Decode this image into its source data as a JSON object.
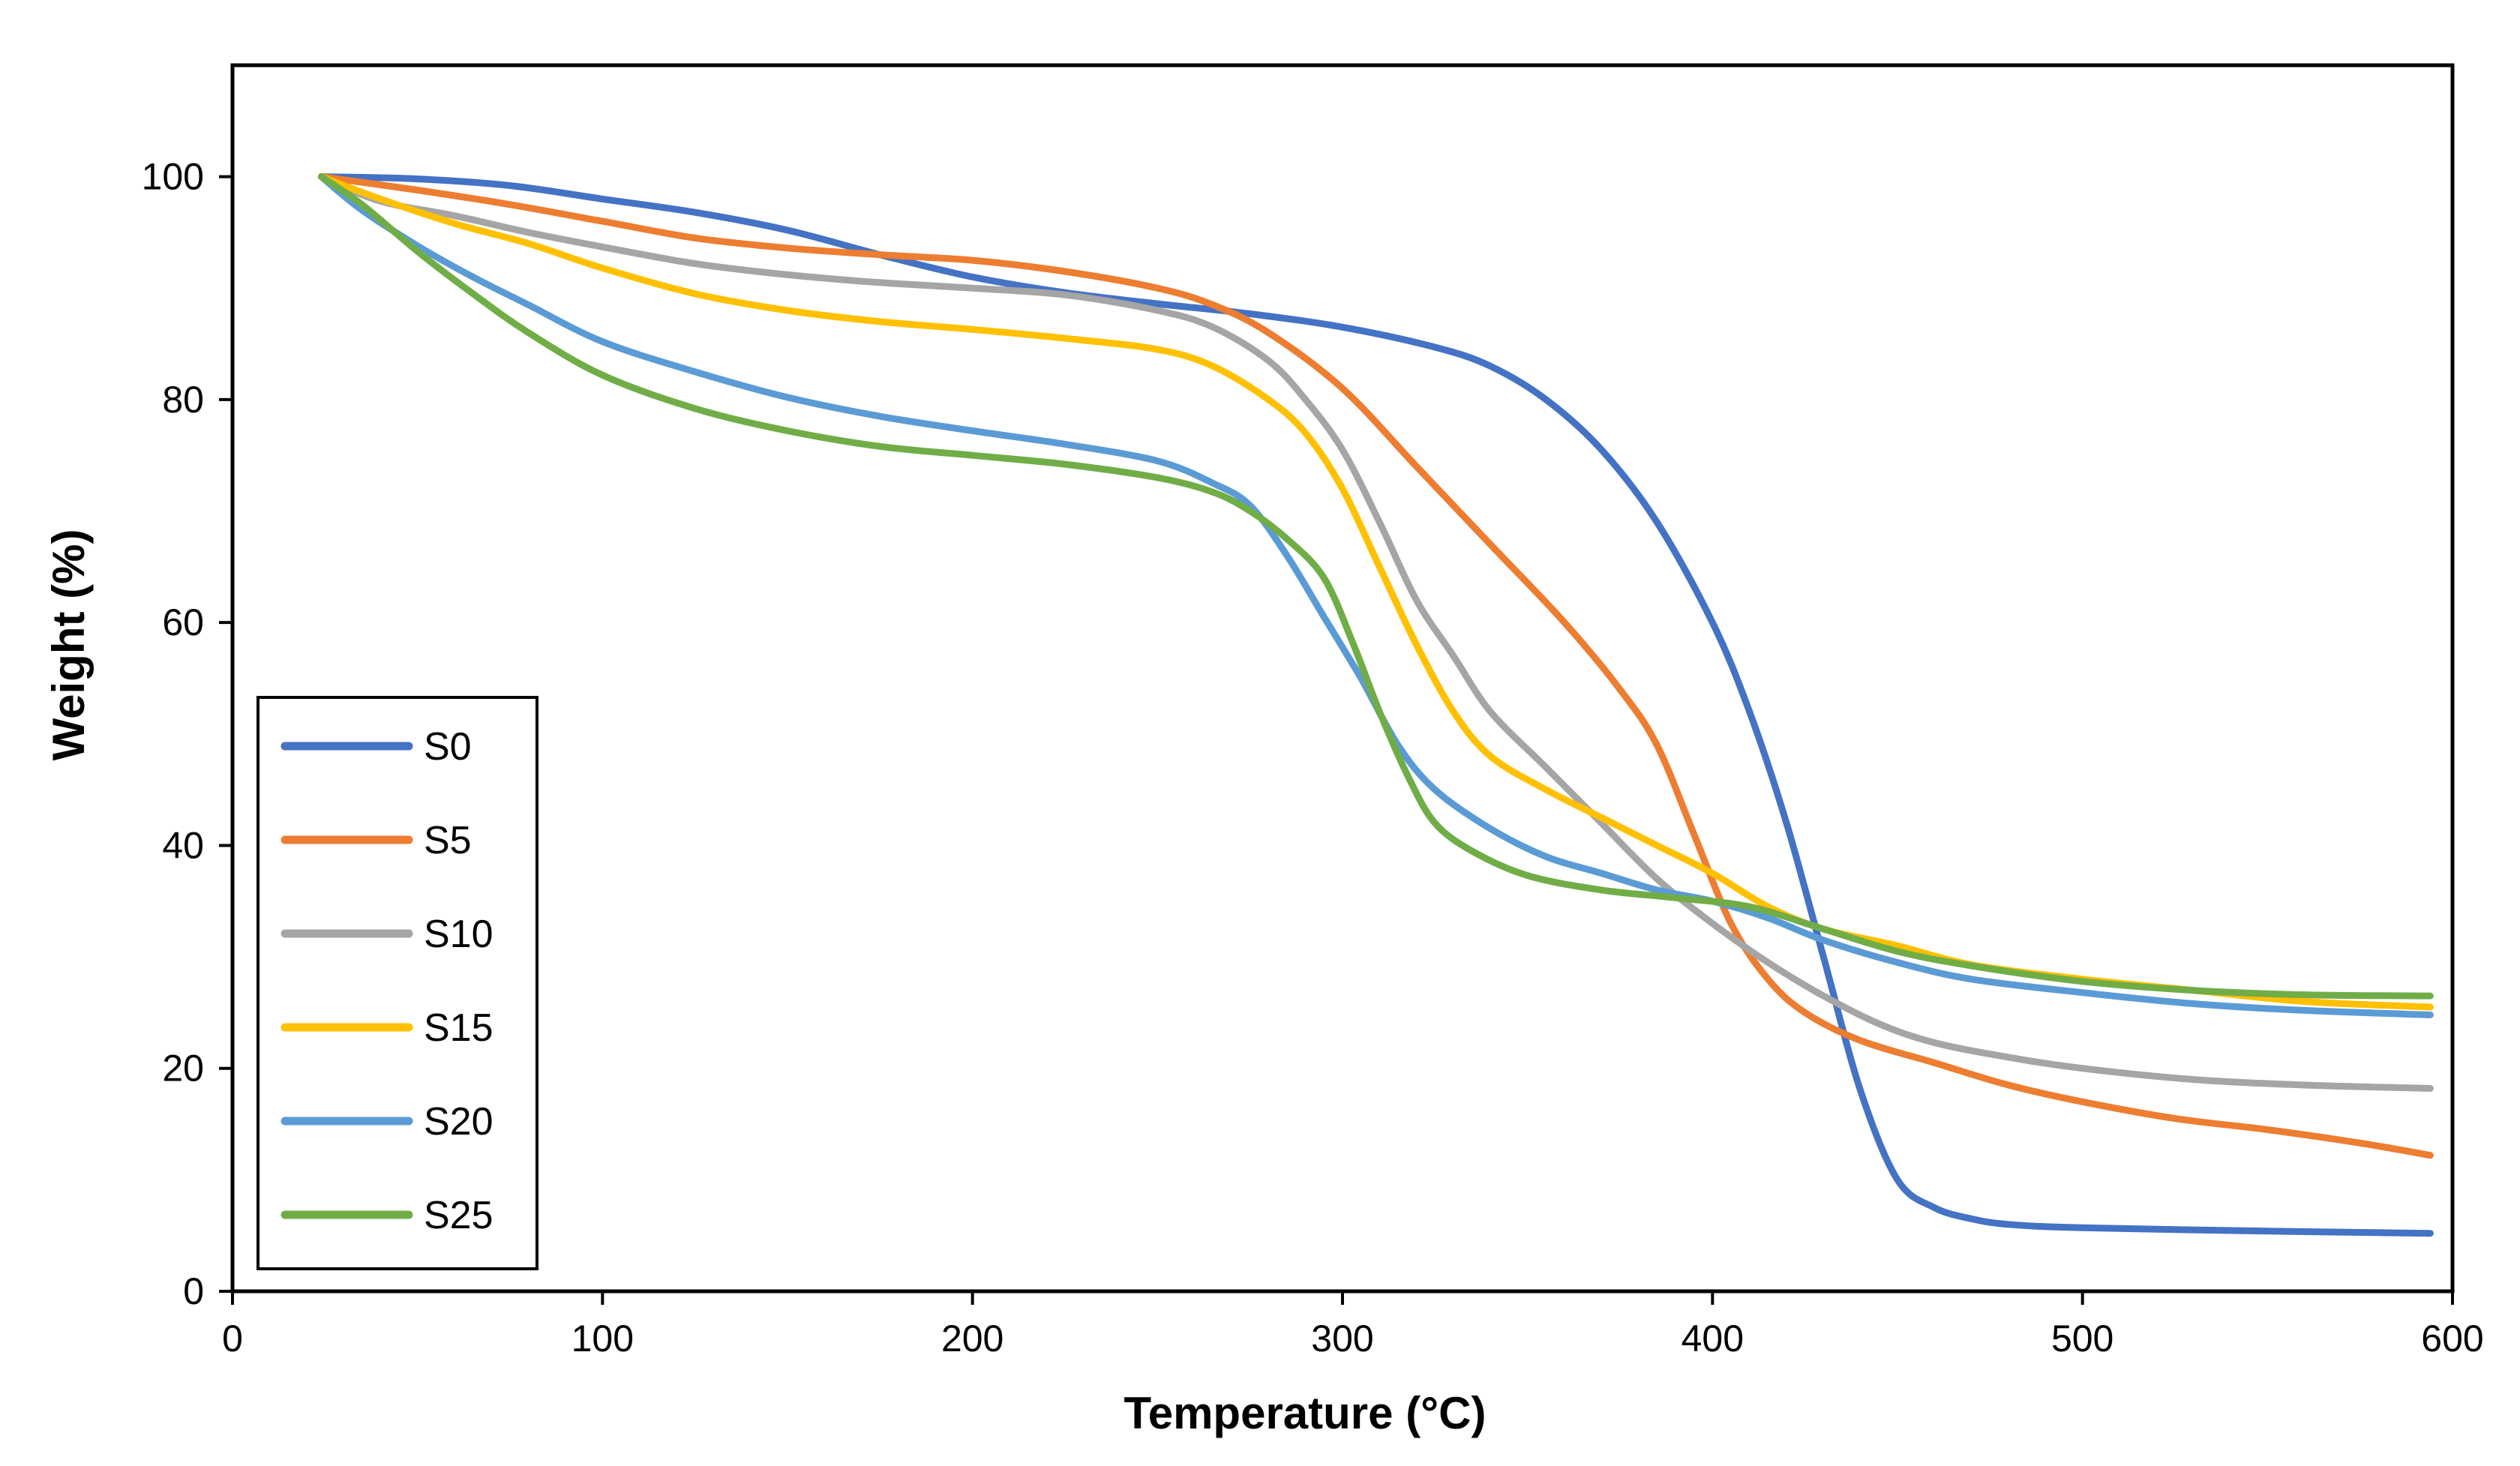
{
  "chart_data": {
    "type": "line",
    "title": "",
    "xlabel": "Temperature (°C)",
    "ylabel": "Weight (%)",
    "xlim": [
      0,
      600
    ],
    "ylim": [
      0,
      110
    ],
    "x_ticks": [
      0,
      100,
      200,
      300,
      400,
      500,
      600
    ],
    "y_ticks": [
      0,
      20,
      40,
      60,
      80,
      100
    ],
    "grid": false,
    "legend_position": "bottom-left",
    "series": [
      {
        "name": "S0",
        "color": "#4472C4",
        "points": [
          [
            24,
            100
          ],
          [
            50,
            99.8
          ],
          [
            75,
            99.2
          ],
          [
            100,
            98
          ],
          [
            125,
            96.8
          ],
          [
            150,
            95.2
          ],
          [
            175,
            93
          ],
          [
            200,
            91
          ],
          [
            225,
            89.6
          ],
          [
            250,
            88.6
          ],
          [
            275,
            87.7
          ],
          [
            300,
            86.5
          ],
          [
            325,
            84.7
          ],
          [
            340,
            83
          ],
          [
            355,
            80
          ],
          [
            370,
            75.5
          ],
          [
            385,
            69
          ],
          [
            400,
            60
          ],
          [
            410,
            52
          ],
          [
            420,
            42
          ],
          [
            430,
            30
          ],
          [
            440,
            18
          ],
          [
            450,
            10
          ],
          [
            460,
            7.5
          ],
          [
            470,
            6.5
          ],
          [
            480,
            6
          ],
          [
            500,
            5.7
          ],
          [
            550,
            5.4
          ],
          [
            594,
            5.2
          ]
        ]
      },
      {
        "name": "S5",
        "color": "#ED7D31",
        "points": [
          [
            24,
            100
          ],
          [
            50,
            98.8
          ],
          [
            75,
            97.5
          ],
          [
            100,
            96
          ],
          [
            125,
            94.5
          ],
          [
            150,
            93.6
          ],
          [
            175,
            93
          ],
          [
            200,
            92.5
          ],
          [
            225,
            91.5
          ],
          [
            250,
            90
          ],
          [
            265,
            88.5
          ],
          [
            280,
            86
          ],
          [
            300,
            81
          ],
          [
            320,
            74
          ],
          [
            340,
            67
          ],
          [
            360,
            60
          ],
          [
            375,
            54
          ],
          [
            385,
            49
          ],
          [
            395,
            41
          ],
          [
            405,
            33
          ],
          [
            415,
            28
          ],
          [
            425,
            25
          ],
          [
            440,
            22.5
          ],
          [
            460,
            20.5
          ],
          [
            480,
            18.5
          ],
          [
            500,
            17
          ],
          [
            525,
            15.5
          ],
          [
            550,
            14.5
          ],
          [
            575,
            13.3
          ],
          [
            594,
            12.2
          ]
        ]
      },
      {
        "name": "S10",
        "color": "#A5A5A5",
        "points": [
          [
            24,
            100
          ],
          [
            40,
            97.8
          ],
          [
            60,
            96.5
          ],
          [
            80,
            95
          ],
          [
            100,
            93.7
          ],
          [
            125,
            92.2
          ],
          [
            150,
            91.2
          ],
          [
            175,
            90.5
          ],
          [
            200,
            90
          ],
          [
            225,
            89.4
          ],
          [
            250,
            88
          ],
          [
            265,
            86.5
          ],
          [
            280,
            83.5
          ],
          [
            290,
            80
          ],
          [
            300,
            75.5
          ],
          [
            310,
            69
          ],
          [
            320,
            62
          ],
          [
            330,
            57
          ],
          [
            340,
            52
          ],
          [
            355,
            47
          ],
          [
            370,
            42
          ],
          [
            385,
            37
          ],
          [
            400,
            33
          ],
          [
            415,
            29.5
          ],
          [
            430,
            26.5
          ],
          [
            445,
            24
          ],
          [
            460,
            22.3
          ],
          [
            480,
            21
          ],
          [
            500,
            20
          ],
          [
            530,
            19
          ],
          [
            560,
            18.5
          ],
          [
            594,
            18.2
          ]
        ]
      },
      {
        "name": "S15",
        "color": "#FFC000",
        "points": [
          [
            24,
            100
          ],
          [
            40,
            98
          ],
          [
            60,
            95.8
          ],
          [
            80,
            94
          ],
          [
            100,
            91.8
          ],
          [
            125,
            89.5
          ],
          [
            150,
            88
          ],
          [
            175,
            87
          ],
          [
            200,
            86.3
          ],
          [
            225,
            85.5
          ],
          [
            250,
            84.5
          ],
          [
            265,
            83
          ],
          [
            280,
            80
          ],
          [
            290,
            77
          ],
          [
            300,
            72
          ],
          [
            310,
            65
          ],
          [
            320,
            58
          ],
          [
            330,
            52
          ],
          [
            340,
            48
          ],
          [
            355,
            45
          ],
          [
            370,
            42.5
          ],
          [
            385,
            40
          ],
          [
            400,
            37.5
          ],
          [
            415,
            34.5
          ],
          [
            430,
            32.5
          ],
          [
            450,
            31
          ],
          [
            470,
            29.3
          ],
          [
            500,
            28
          ],
          [
            530,
            27
          ],
          [
            560,
            26
          ],
          [
            594,
            25.5
          ]
        ]
      },
      {
        "name": "S20",
        "color": "#5B9BD5",
        "points": [
          [
            24,
            100
          ],
          [
            35,
            97
          ],
          [
            50,
            93.8
          ],
          [
            65,
            91
          ],
          [
            80,
            88.5
          ],
          [
            100,
            85.2
          ],
          [
            125,
            82.5
          ],
          [
            150,
            80.2
          ],
          [
            175,
            78.5
          ],
          [
            200,
            77.2
          ],
          [
            225,
            76
          ],
          [
            250,
            74.5
          ],
          [
            265,
            72.5
          ],
          [
            275,
            70.5
          ],
          [
            285,
            66
          ],
          [
            295,
            60.5
          ],
          [
            305,
            55
          ],
          [
            315,
            49
          ],
          [
            325,
            45
          ],
          [
            340,
            41.5
          ],
          [
            355,
            39
          ],
          [
            370,
            37.5
          ],
          [
            385,
            36
          ],
          [
            400,
            35
          ],
          [
            415,
            33.5
          ],
          [
            430,
            31.5
          ],
          [
            450,
            29.5
          ],
          [
            470,
            28
          ],
          [
            500,
            26.8
          ],
          [
            530,
            25.8
          ],
          [
            560,
            25.2
          ],
          [
            594,
            24.8
          ]
        ]
      },
      {
        "name": "S25",
        "color": "#70AD47",
        "points": [
          [
            24,
            100
          ],
          [
            35,
            97.5
          ],
          [
            50,
            93.3
          ],
          [
            65,
            89.5
          ],
          [
            80,
            86
          ],
          [
            100,
            82.2
          ],
          [
            125,
            79.2
          ],
          [
            150,
            77.2
          ],
          [
            175,
            75.8
          ],
          [
            200,
            75
          ],
          [
            225,
            74.2
          ],
          [
            250,
            73
          ],
          [
            265,
            71.7
          ],
          [
            275,
            70
          ],
          [
            285,
            67.5
          ],
          [
            295,
            64
          ],
          [
            303,
            58
          ],
          [
            310,
            52
          ],
          [
            318,
            46
          ],
          [
            325,
            42
          ],
          [
            335,
            39.5
          ],
          [
            350,
            37.3
          ],
          [
            370,
            36
          ],
          [
            390,
            35.3
          ],
          [
            410,
            34.5
          ],
          [
            430,
            32.5
          ],
          [
            450,
            30.5
          ],
          [
            470,
            29.2
          ],
          [
            500,
            27.8
          ],
          [
            530,
            27
          ],
          [
            560,
            26.6
          ],
          [
            594,
            26.5
          ]
        ]
      }
    ]
  }
}
